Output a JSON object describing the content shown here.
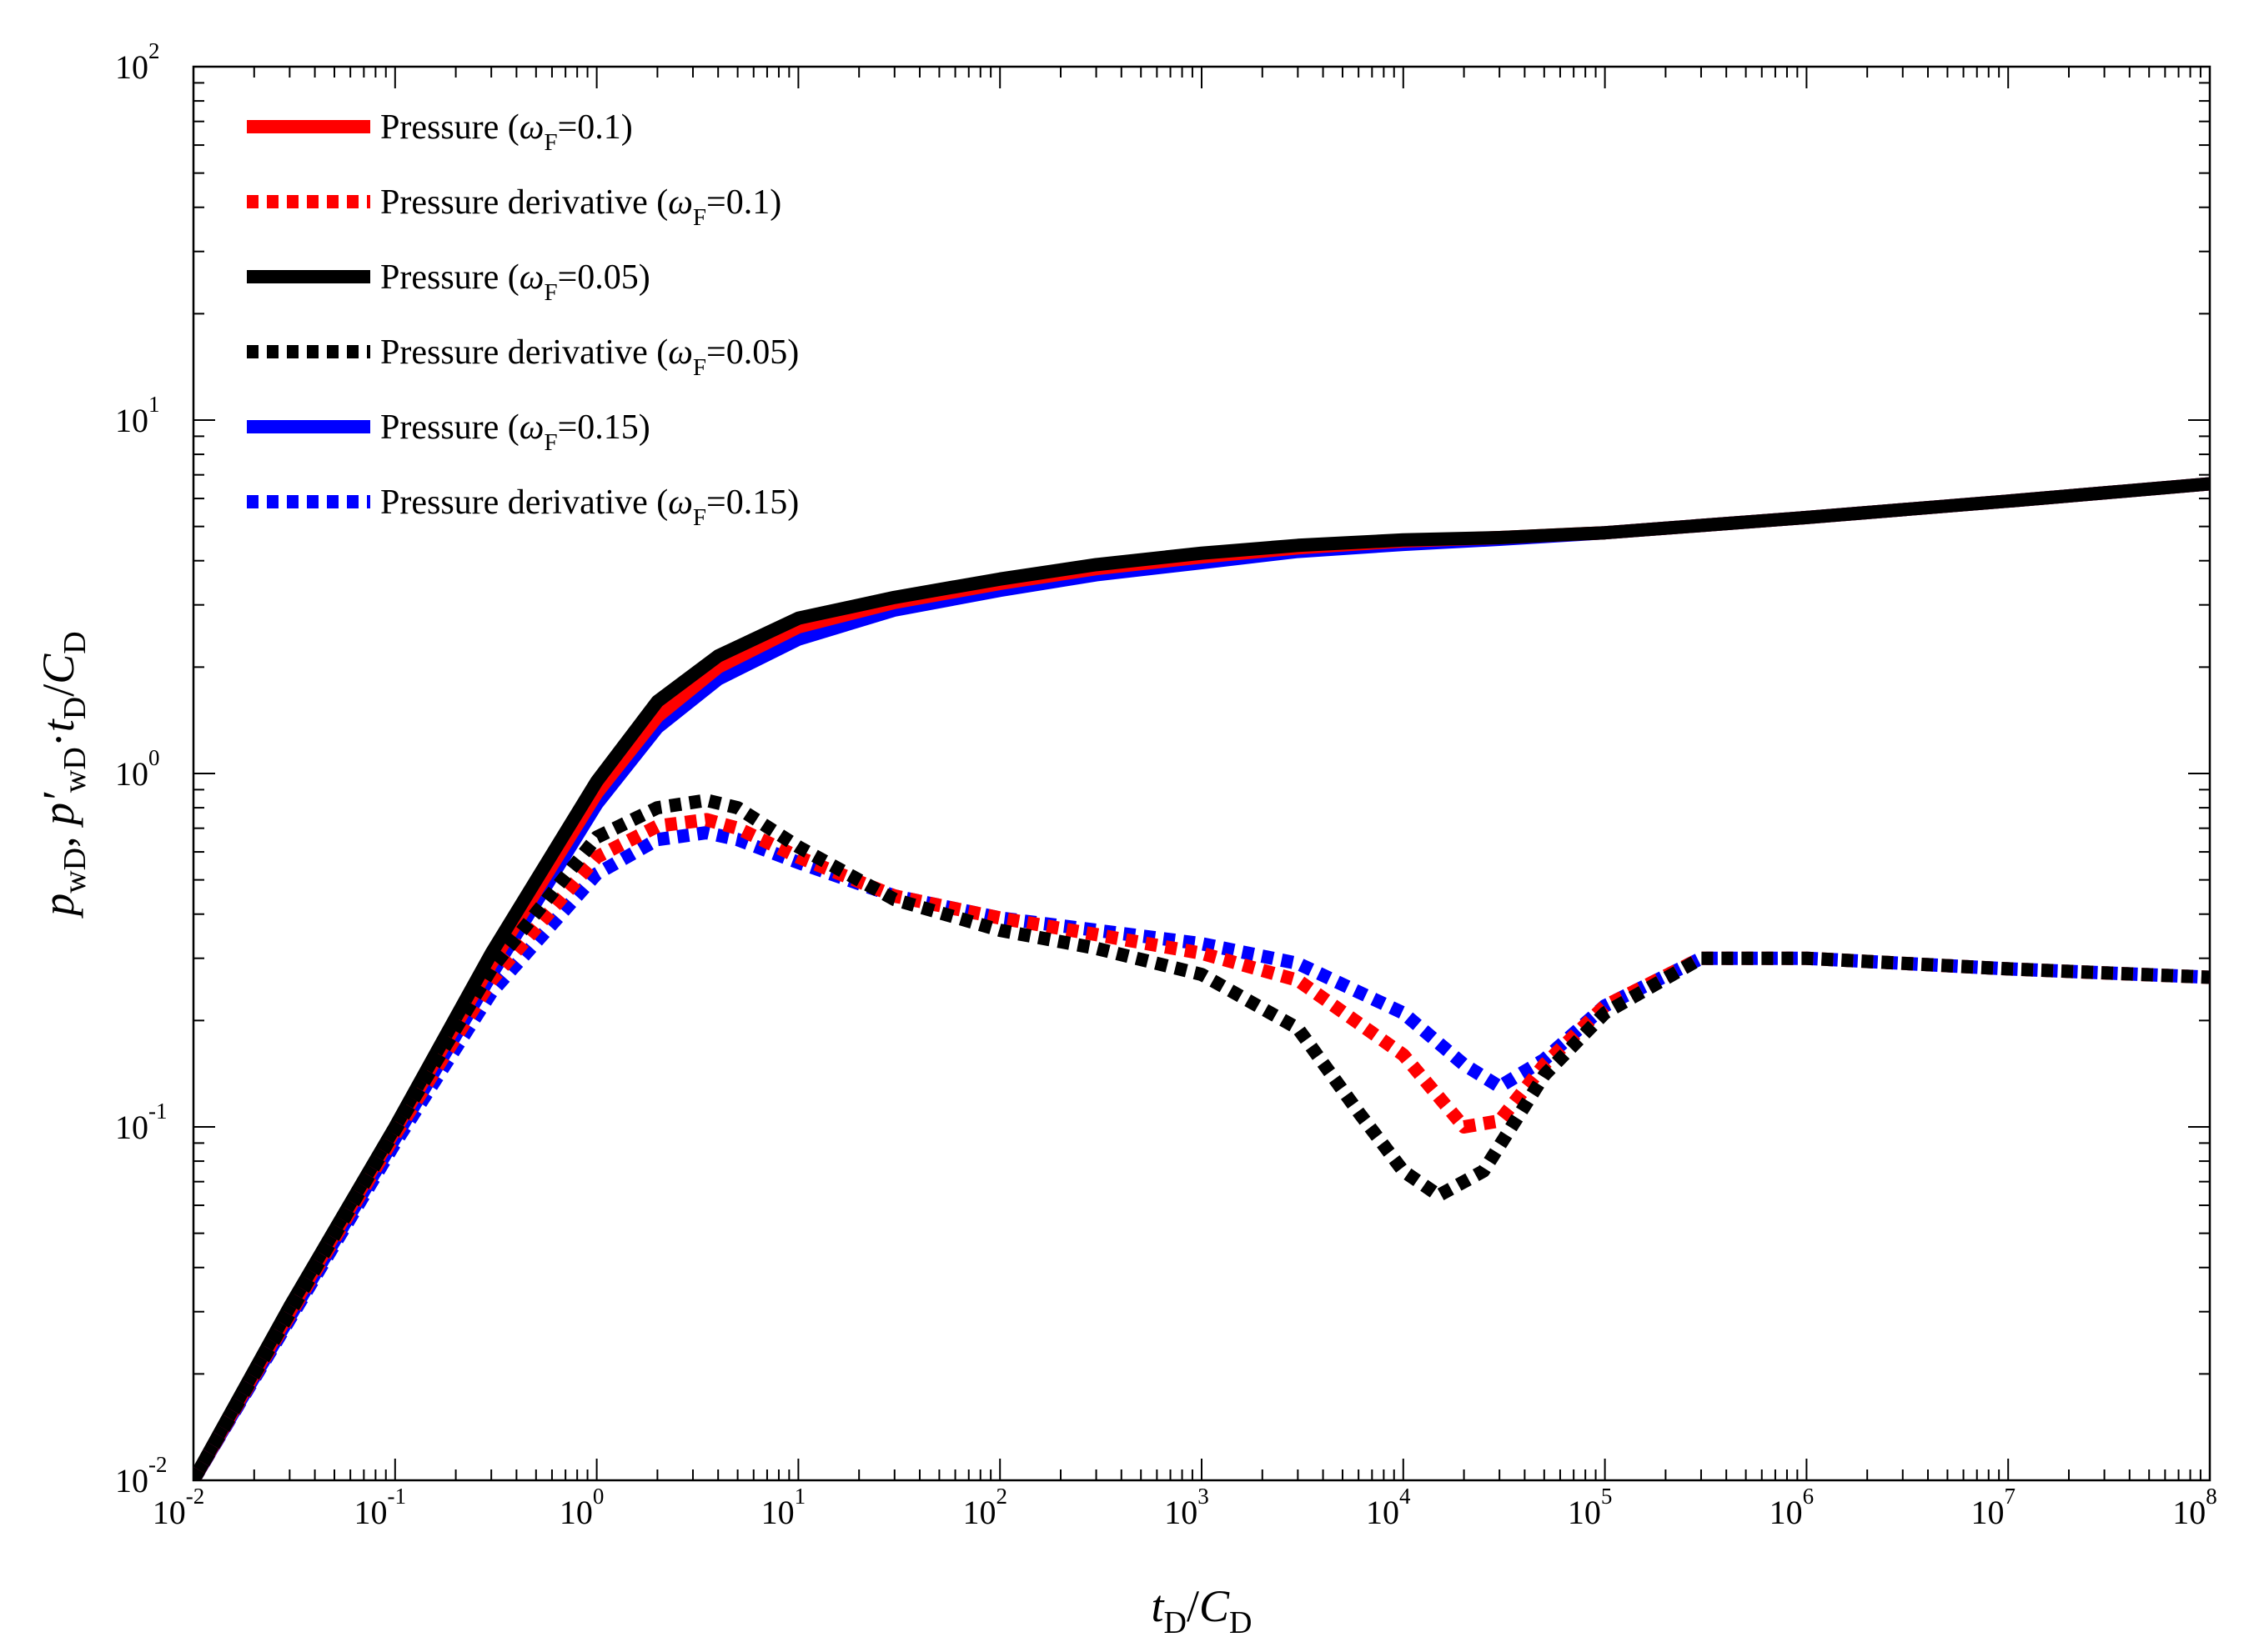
{
  "chart_data": {
    "type": "line",
    "x_scale": "log",
    "y_scale": "log",
    "xlim": [
      0.01,
      100000000
    ],
    "ylim": [
      0.01,
      100
    ],
    "x_ticks": [
      {
        "base": "10",
        "exp": "-2"
      },
      {
        "base": "10",
        "exp": "-1"
      },
      {
        "base": "10",
        "exp": "0"
      },
      {
        "base": "10",
        "exp": "1"
      },
      {
        "base": "10",
        "exp": "2"
      },
      {
        "base": "10",
        "exp": "3"
      },
      {
        "base": "10",
        "exp": "4"
      },
      {
        "base": "10",
        "exp": "5"
      },
      {
        "base": "10",
        "exp": "6"
      },
      {
        "base": "10",
        "exp": "7"
      },
      {
        "base": "10",
        "exp": "8"
      }
    ],
    "y_ticks": [
      {
        "base": "10",
        "exp": "-2"
      },
      {
        "base": "10",
        "exp": "-1"
      },
      {
        "base": "10",
        "exp": "0"
      },
      {
        "base": "10",
        "exp": "1"
      },
      {
        "base": "10",
        "exp": "2"
      }
    ],
    "xlabel": {
      "t": "t",
      "t_sub": "D",
      "slash": "/",
      "c": "C",
      "c_sub": "D"
    },
    "ylabel": {
      "p1": "p",
      "p1_sub": "wD",
      "comma": ", ",
      "p2": "p′",
      "p2_sub": "wD",
      "dot": "·",
      "t": "t",
      "t_sub": "D",
      "slash": "/",
      "c": "C",
      "c_sub": "D"
    },
    "legend_position": "top-left",
    "grid": false,
    "series": [
      {
        "legend_text": "Pressure (",
        "legend_omega": "ω",
        "legend_sub": "F",
        "legend_value": "=0.1)",
        "color": "#ff0000",
        "style": "solid",
        "x": [
          0.01,
          0.03,
          0.1,
          0.3,
          1,
          2,
          4,
          10,
          30,
          100,
          300,
          1000,
          3000,
          10000,
          30000,
          100000,
          1000000,
          10000000,
          100000000
        ],
        "y": [
          0.01,
          0.03,
          0.098,
          0.29,
          0.88,
          1.45,
          2.0,
          2.6,
          3.05,
          3.45,
          3.8,
          4.1,
          4.35,
          4.55,
          4.65,
          4.8,
          5.3,
          5.9,
          6.6
        ]
      },
      {
        "legend_text": "Pressure derivative (",
        "legend_omega": "ω",
        "legend_sub": "F",
        "legend_value": "=0.1)",
        "color": "#ff0000",
        "style": "dotted",
        "x": [
          0.01,
          0.1,
          0.3,
          1,
          2,
          3.5,
          5,
          10,
          30,
          100,
          300,
          1000,
          3000,
          10000,
          20000,
          30000,
          50000,
          100000,
          300000,
          1000000,
          10000000,
          100000000
        ],
        "y": [
          0.01,
          0.095,
          0.26,
          0.58,
          0.71,
          0.74,
          0.7,
          0.58,
          0.45,
          0.39,
          0.35,
          0.31,
          0.26,
          0.16,
          0.1,
          0.104,
          0.15,
          0.22,
          0.3,
          0.3,
          0.28,
          0.265
        ]
      },
      {
        "legend_text": "Pressure (",
        "legend_omega": "ω",
        "legend_sub": "F",
        "legend_value": "=0.05)",
        "color": "#000000",
        "style": "solid",
        "x": [
          0.01,
          0.03,
          0.1,
          0.3,
          1,
          2,
          4,
          10,
          30,
          100,
          300,
          1000,
          3000,
          10000,
          30000,
          100000,
          1000000,
          10000000,
          100000000
        ],
        "y": [
          0.01,
          0.031,
          0.1,
          0.31,
          0.95,
          1.6,
          2.15,
          2.75,
          3.15,
          3.55,
          3.9,
          4.2,
          4.42,
          4.58,
          4.65,
          4.8,
          5.3,
          5.9,
          6.6
        ]
      },
      {
        "legend_text": "Pressure derivative (",
        "legend_omega": "ω",
        "legend_sub": "F",
        "legend_value": "=0.05)",
        "color": "#000000",
        "style": "dotted",
        "x": [
          0.01,
          0.1,
          0.3,
          1,
          2,
          3.5,
          5,
          10,
          30,
          100,
          300,
          1000,
          3000,
          6000,
          10000,
          15000,
          25000,
          50000,
          100000,
          300000,
          1000000,
          10000000,
          100000000
        ],
        "y": [
          0.01,
          0.098,
          0.28,
          0.66,
          0.8,
          0.84,
          0.8,
          0.62,
          0.44,
          0.36,
          0.32,
          0.27,
          0.19,
          0.11,
          0.075,
          0.064,
          0.075,
          0.14,
          0.21,
          0.3,
          0.3,
          0.28,
          0.265
        ]
      },
      {
        "legend_text": "Pressure (",
        "legend_omega": "ω",
        "legend_sub": "F",
        "legend_value": "=0.15)",
        "color": "#0000ff",
        "style": "solid",
        "x": [
          0.01,
          0.03,
          0.1,
          0.3,
          1,
          2,
          4,
          10,
          30,
          100,
          300,
          1000,
          3000,
          10000,
          30000,
          100000,
          1000000,
          10000000,
          100000000
        ],
        "y": [
          0.01,
          0.029,
          0.093,
          0.27,
          0.82,
          1.35,
          1.85,
          2.4,
          2.9,
          3.3,
          3.65,
          3.95,
          4.25,
          4.45,
          4.6,
          4.8,
          5.3,
          5.9,
          6.6
        ]
      },
      {
        "legend_text": "Pressure derivative (",
        "legend_omega": "ω",
        "legend_sub": "F",
        "legend_value": "=0.15)",
        "color": "#0000ff",
        "style": "dotted",
        "x": [
          0.01,
          0.1,
          0.3,
          1,
          2,
          3.5,
          5,
          10,
          30,
          100,
          300,
          1000,
          3000,
          10000,
          20000,
          30000,
          50000,
          100000,
          300000,
          1000000,
          10000000,
          100000000
        ],
        "y": [
          0.01,
          0.09,
          0.24,
          0.52,
          0.65,
          0.68,
          0.65,
          0.56,
          0.45,
          0.39,
          0.36,
          0.33,
          0.29,
          0.21,
          0.15,
          0.13,
          0.155,
          0.22,
          0.3,
          0.3,
          0.28,
          0.265
        ]
      }
    ]
  }
}
